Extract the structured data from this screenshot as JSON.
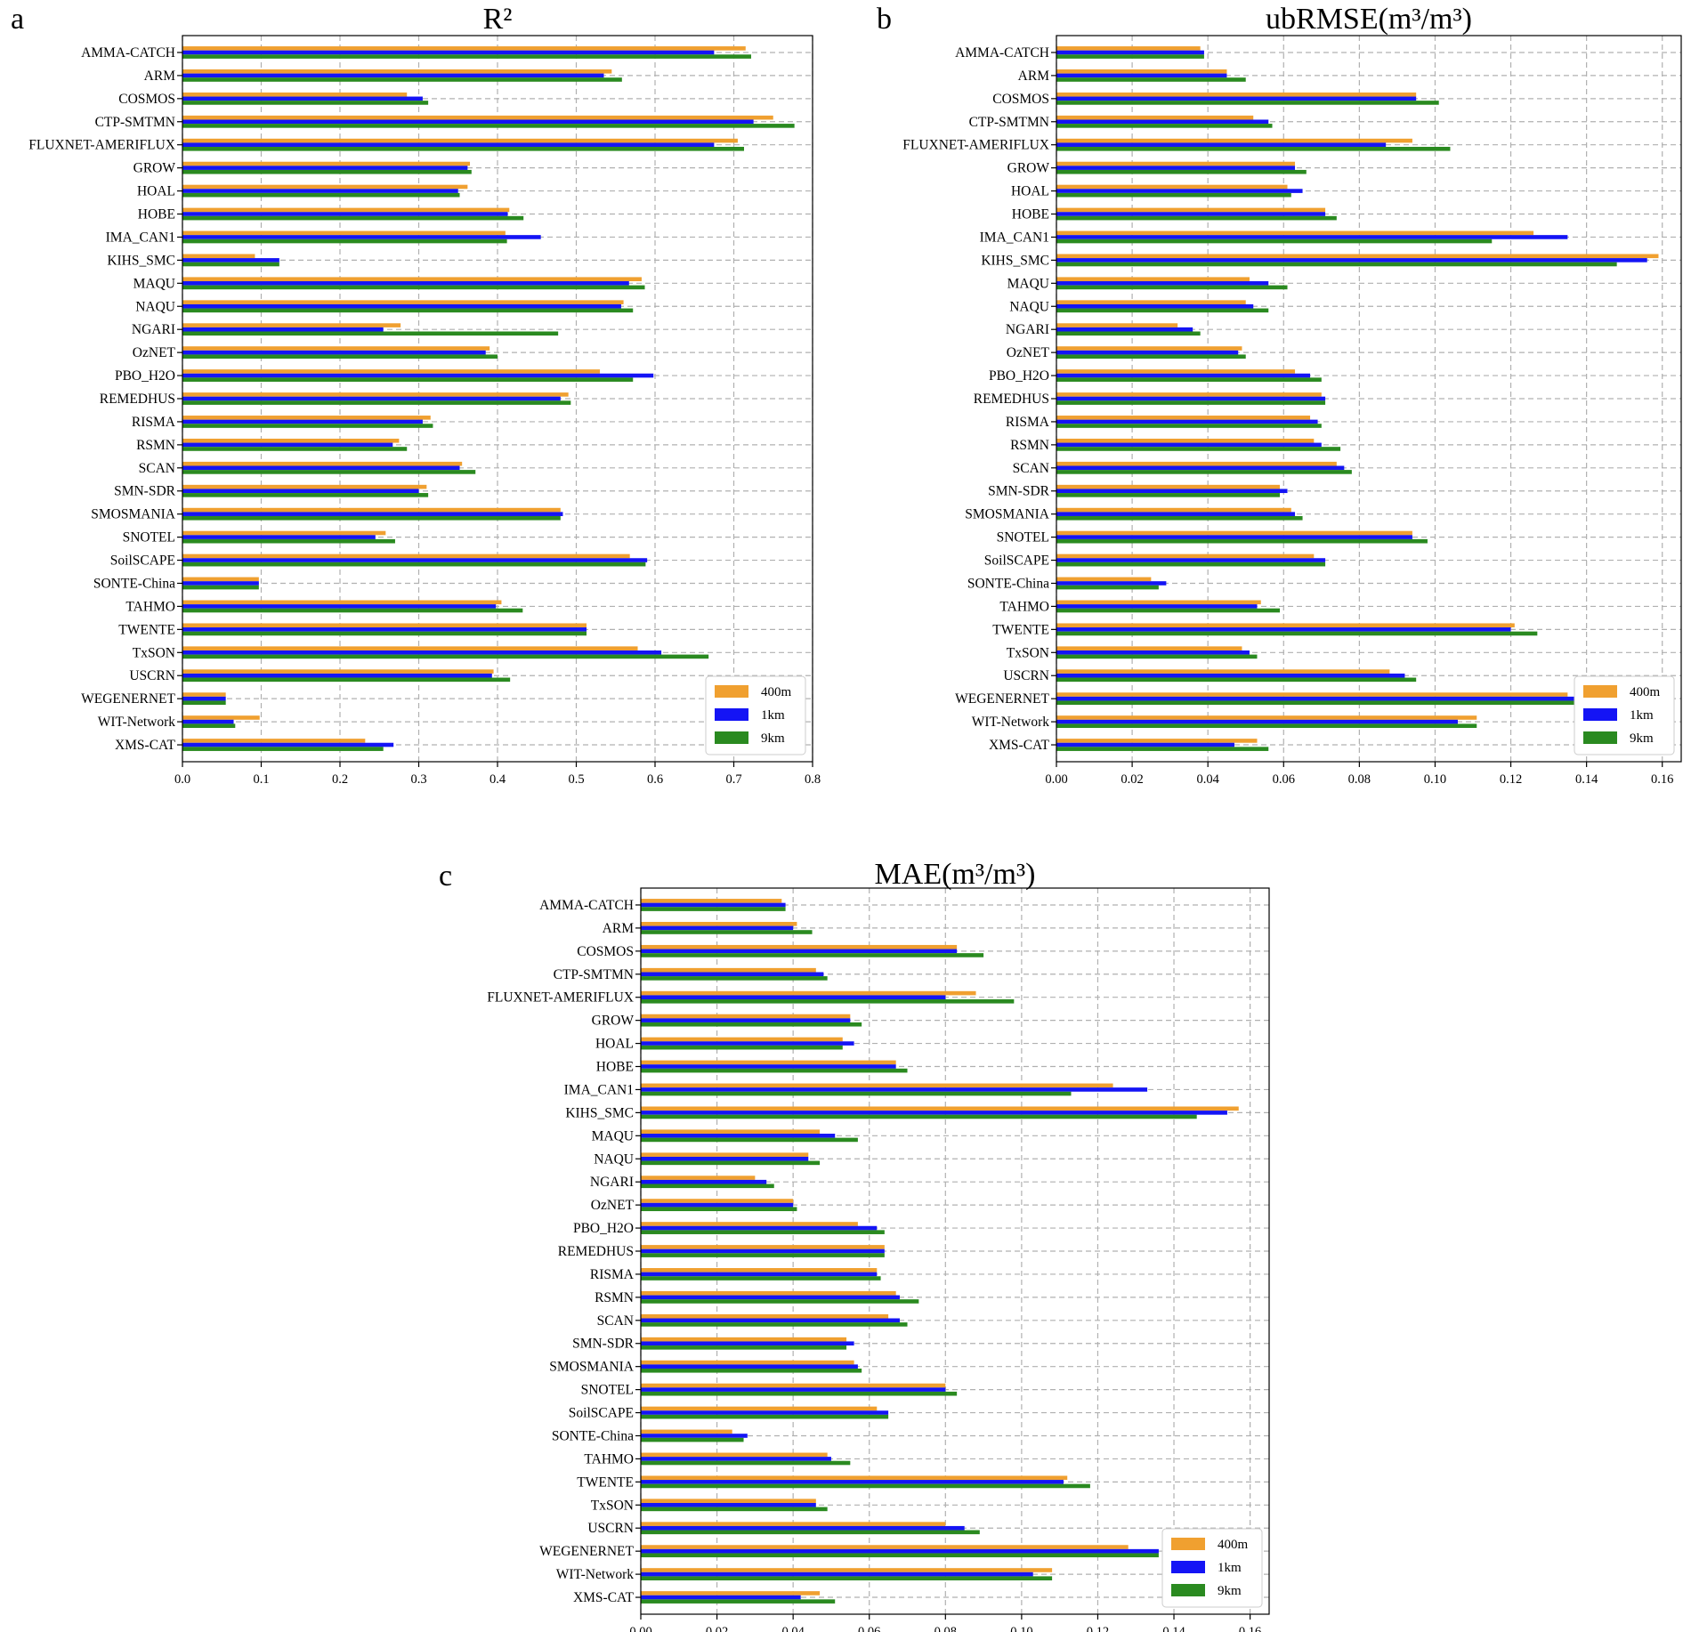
{
  "series_names": [
    "400m",
    "1km",
    "9km"
  ],
  "colors": {
    "400m": "#f0a030",
    "1km": "#1414f5",
    "9km": "#2a8a20"
  },
  "chart_data": [
    {
      "panel": "a",
      "type": "bar",
      "orientation": "horizontal",
      "title": "R²",
      "xlabel": "",
      "ylabel": "",
      "xlim": [
        0,
        0.8
      ],
      "xticks": [
        "0.0",
        "0.1",
        "0.2",
        "0.3",
        "0.4",
        "0.5",
        "0.6",
        "0.7",
        "0.8"
      ],
      "grid": true,
      "legend_position": "lower-right",
      "categories": [
        "AMMA-CATCH",
        "ARM",
        "COSMOS",
        "CTP-SMTMN",
        "FLUXNET-AMERIFLUX",
        "GROW",
        "HOAL",
        "HOBE",
        "IMA_CAN1",
        "KIHS_SMC",
        "MAQU",
        "NAQU",
        "NGARI",
        "OzNET",
        "PBO_H2O",
        "REMEDHUS",
        "RISMA",
        "RSMN",
        "SCAN",
        "SMN-SDR",
        "SMOSMANIA",
        "SNOTEL",
        "SoilSCAPE",
        "SONTE-China",
        "TAHMO",
        "TWENTE",
        "TxSON",
        "USCRN",
        "WEGENERNET",
        "WIT-Network",
        "XMS-CAT"
      ],
      "series": [
        {
          "name": "400m",
          "values": [
            0.715,
            0.545,
            0.285,
            0.75,
            0.705,
            0.365,
            0.362,
            0.415,
            0.41,
            0.092,
            0.583,
            0.56,
            0.277,
            0.39,
            0.53,
            0.49,
            0.315,
            0.275,
            0.355,
            0.31,
            0.48,
            0.258,
            0.568,
            0.097,
            0.405,
            0.513,
            0.578,
            0.395,
            0.055,
            0.098,
            0.232
          ]
        },
        {
          "name": "1km",
          "values": [
            0.675,
            0.535,
            0.305,
            0.725,
            0.675,
            0.362,
            0.35,
            0.413,
            0.455,
            0.123,
            0.567,
            0.557,
            0.255,
            0.385,
            0.598,
            0.48,
            0.305,
            0.267,
            0.352,
            0.3,
            0.483,
            0.245,
            0.59,
            0.097,
            0.398,
            0.513,
            0.608,
            0.393,
            0.055,
            0.065,
            0.268
          ]
        },
        {
          "name": "9km",
          "values": [
            0.722,
            0.558,
            0.312,
            0.777,
            0.713,
            0.367,
            0.352,
            0.433,
            0.412,
            0.123,
            0.587,
            0.572,
            0.477,
            0.4,
            0.572,
            0.493,
            0.318,
            0.285,
            0.372,
            0.312,
            0.48,
            0.27,
            0.588,
            0.097,
            0.432,
            0.513,
            0.668,
            0.416,
            0.055,
            0.067,
            0.255
          ]
        }
      ]
    },
    {
      "panel": "b",
      "type": "bar",
      "orientation": "horizontal",
      "title": "ubRMSE(m³/m³)",
      "xlabel": "",
      "ylabel": "",
      "xlim": [
        0,
        0.165
      ],
      "xticks": [
        "0.00",
        "0.02",
        "0.04",
        "0.06",
        "0.08",
        "0.10",
        "0.12",
        "0.14",
        "0.16"
      ],
      "grid": true,
      "legend_position": "lower-right",
      "categories": [
        "AMMA-CATCH",
        "ARM",
        "COSMOS",
        "CTP-SMTMN",
        "FLUXNET-AMERIFLUX",
        "GROW",
        "HOAL",
        "HOBE",
        "IMA_CAN1",
        "KIHS_SMC",
        "MAQU",
        "NAQU",
        "NGARI",
        "OzNET",
        "PBO_H2O",
        "REMEDHUS",
        "RISMA",
        "RSMN",
        "SCAN",
        "SMN-SDR",
        "SMOSMANIA",
        "SNOTEL",
        "SoilSCAPE",
        "SONTE-China",
        "TAHMO",
        "TWENTE",
        "TxSON",
        "USCRN",
        "WEGENERNET",
        "WIT-Network",
        "XMS-CAT"
      ],
      "series": [
        {
          "name": "400m",
          "values": [
            0.038,
            0.045,
            0.095,
            0.052,
            0.094,
            0.063,
            0.061,
            0.071,
            0.126,
            0.159,
            0.051,
            0.05,
            0.032,
            0.049,
            0.063,
            0.07,
            0.067,
            0.068,
            0.074,
            0.059,
            0.062,
            0.094,
            0.068,
            0.025,
            0.054,
            0.121,
            0.049,
            0.088,
            0.135,
            0.111,
            0.053
          ]
        },
        {
          "name": "1km",
          "values": [
            0.039,
            0.045,
            0.095,
            0.056,
            0.087,
            0.063,
            0.065,
            0.071,
            0.135,
            0.156,
            0.056,
            0.052,
            0.036,
            0.048,
            0.067,
            0.071,
            0.069,
            0.07,
            0.076,
            0.061,
            0.063,
            0.094,
            0.071,
            0.029,
            0.053,
            0.12,
            0.051,
            0.092,
            0.143,
            0.106,
            0.047
          ]
        },
        {
          "name": "9km",
          "values": [
            0.039,
            0.05,
            0.101,
            0.057,
            0.104,
            0.066,
            0.062,
            0.074,
            0.115,
            0.148,
            0.061,
            0.056,
            0.038,
            0.05,
            0.07,
            0.071,
            0.07,
            0.075,
            0.078,
            0.059,
            0.065,
            0.098,
            0.071,
            0.027,
            0.059,
            0.127,
            0.053,
            0.095,
            0.14,
            0.111,
            0.056
          ]
        }
      ]
    },
    {
      "panel": "c",
      "type": "bar",
      "orientation": "horizontal",
      "title": "MAE(m³/m³)",
      "xlabel": "",
      "ylabel": "",
      "xlim": [
        0,
        0.165
      ],
      "xticks": [
        "0.00",
        "0.02",
        "0.04",
        "0.06",
        "0.08",
        "0.10",
        "0.12",
        "0.14",
        "0.16"
      ],
      "grid": true,
      "legend_position": "lower-right",
      "categories": [
        "AMMA-CATCH",
        "ARM",
        "COSMOS",
        "CTP-SMTMN",
        "FLUXNET-AMERIFLUX",
        "GROW",
        "HOAL",
        "HOBE",
        "IMA_CAN1",
        "KIHS_SMC",
        "MAQU",
        "NAQU",
        "NGARI",
        "OzNET",
        "PBO_H2O",
        "REMEDHUS",
        "RISMA",
        "RSMN",
        "SCAN",
        "SMN-SDR",
        "SMOSMANIA",
        "SNOTEL",
        "SoilSCAPE",
        "SONTE-China",
        "TAHMO",
        "TWENTE",
        "TxSON",
        "USCRN",
        "WEGENERNET",
        "WIT-Network",
        "XMS-CAT"
      ],
      "series": [
        {
          "name": "400m",
          "values": [
            0.037,
            0.041,
            0.083,
            0.046,
            0.088,
            0.055,
            0.053,
            0.067,
            0.124,
            0.157,
            0.047,
            0.044,
            0.03,
            0.04,
            0.057,
            0.064,
            0.062,
            0.067,
            0.065,
            0.054,
            0.056,
            0.08,
            0.062,
            0.024,
            0.049,
            0.112,
            0.046,
            0.08,
            0.128,
            0.108,
            0.047
          ]
        },
        {
          "name": "1km",
          "values": [
            0.038,
            0.04,
            0.083,
            0.048,
            0.08,
            0.055,
            0.056,
            0.067,
            0.133,
            0.154,
            0.051,
            0.044,
            0.033,
            0.04,
            0.062,
            0.064,
            0.062,
            0.068,
            0.068,
            0.056,
            0.057,
            0.08,
            0.065,
            0.028,
            0.05,
            0.111,
            0.046,
            0.085,
            0.136,
            0.103,
            0.042
          ]
        },
        {
          "name": "9km",
          "values": [
            0.038,
            0.045,
            0.09,
            0.049,
            0.098,
            0.058,
            0.053,
            0.07,
            0.113,
            0.146,
            0.057,
            0.047,
            0.035,
            0.041,
            0.064,
            0.064,
            0.063,
            0.073,
            0.07,
            0.054,
            0.058,
            0.083,
            0.065,
            0.027,
            0.055,
            0.118,
            0.049,
            0.089,
            0.136,
            0.108,
            0.051
          ]
        }
      ]
    }
  ]
}
